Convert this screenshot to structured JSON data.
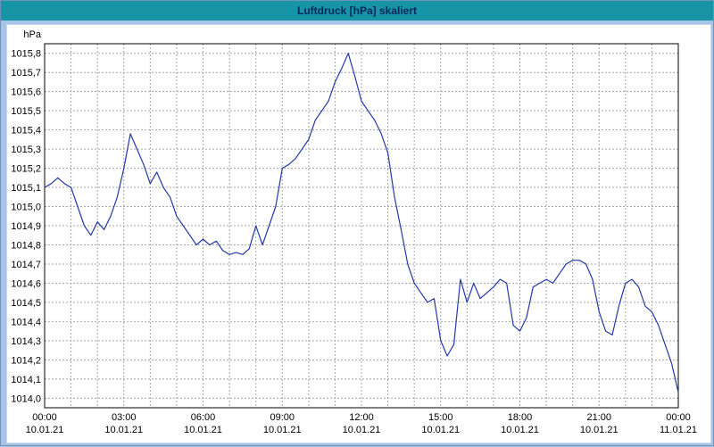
{
  "window": {
    "title": "Luftdruck [hPa] skaliert"
  },
  "colors": {
    "titlebar_bg": "#1794A6",
    "titlebar_text": "#00285A",
    "window_bg": "#A8C4E4",
    "plot_bg": "#FFFFFF",
    "plot_border": "#000000",
    "grid": "#A6A6A6",
    "line": "#2438A8",
    "axis_text": "#000000"
  },
  "chart_data": {
    "type": "line",
    "title": "Luftdruck [hPa] skaliert",
    "ylabel": "hPa",
    "x_unit": "hours_of_day",
    "xlim": [
      0,
      24
    ],
    "ylim": [
      1013.95,
      1015.85
    ],
    "grid": "dashed; vertical every hour, horizontal every 0.1 hPa",
    "legend": "none",
    "y_ticks": [
      1014.0,
      1014.1,
      1014.2,
      1014.3,
      1014.4,
      1014.5,
      1014.6,
      1014.7,
      1014.8,
      1014.9,
      1015.0,
      1015.1,
      1015.2,
      1015.3,
      1015.4,
      1015.5,
      1015.6,
      1015.7,
      1015.8
    ],
    "y_tick_labels": [
      "1014,0",
      "1014,1",
      "1014,2",
      "1014,3",
      "1014,4",
      "1014,5",
      "1014,6",
      "1014,7",
      "1014,8",
      "1014,9",
      "1015,0",
      "1015,1",
      "1015,2",
      "1015,3",
      "1015,4",
      "1015,5",
      "1015,6",
      "1015,7",
      "1015,8"
    ],
    "x_ticks": [
      0,
      3,
      6,
      9,
      12,
      15,
      18,
      21,
      24
    ],
    "x_tick_labels": [
      {
        "time": "00:00",
        "date": "10.01.21"
      },
      {
        "time": "03:00",
        "date": "10.01.21"
      },
      {
        "time": "06:00",
        "date": "10.01.21"
      },
      {
        "time": "09:00",
        "date": "10.01.21"
      },
      {
        "time": "12:00",
        "date": "10.01.21"
      },
      {
        "time": "15:00",
        "date": "10.01.21"
      },
      {
        "time": "18:00",
        "date": "10.01.21"
      },
      {
        "time": "21:00",
        "date": "10.01.21"
      },
      {
        "time": "00:00",
        "date": "11.01.21"
      }
    ],
    "x": [
      0,
      0.25,
      0.5,
      0.75,
      1,
      1.25,
      1.5,
      1.75,
      2,
      2.25,
      2.5,
      2.75,
      3,
      3.25,
      3.5,
      3.75,
      4,
      4.25,
      4.5,
      4.75,
      5,
      5.25,
      5.5,
      5.75,
      6,
      6.25,
      6.5,
      6.75,
      7,
      7.25,
      7.5,
      7.75,
      8,
      8.25,
      8.5,
      8.75,
      9,
      9.25,
      9.5,
      9.75,
      10,
      10.25,
      10.5,
      10.75,
      11,
      11.25,
      11.5,
      11.75,
      12,
      12.25,
      12.5,
      12.75,
      13,
      13.25,
      13.5,
      13.75,
      14,
      14.25,
      14.5,
      14.75,
      15,
      15.25,
      15.5,
      15.75,
      16,
      16.25,
      16.5,
      16.75,
      17,
      17.25,
      17.5,
      17.75,
      18,
      18.25,
      18.5,
      18.75,
      19,
      19.25,
      19.5,
      19.75,
      20,
      20.25,
      20.5,
      20.75,
      21,
      21.25,
      21.5,
      21.75,
      22,
      22.25,
      22.5,
      22.75,
      23,
      23.25,
      23.5,
      23.75,
      24
    ],
    "values": [
      1015.1,
      1015.12,
      1015.15,
      1015.12,
      1015.1,
      1015.0,
      1014.9,
      1014.85,
      1014.92,
      1014.88,
      1014.95,
      1015.05,
      1015.2,
      1015.38,
      1015.3,
      1015.22,
      1015.12,
      1015.18,
      1015.1,
      1015.05,
      1014.95,
      1014.9,
      1014.85,
      1014.8,
      1014.83,
      1014.8,
      1014.82,
      1014.77,
      1014.75,
      1014.76,
      1014.75,
      1014.78,
      1014.9,
      1014.8,
      1014.9,
      1015.0,
      1015.2,
      1015.22,
      1015.25,
      1015.3,
      1015.35,
      1015.45,
      1015.5,
      1015.55,
      1015.65,
      1015.72,
      1015.8,
      1015.68,
      1015.55,
      1015.5,
      1015.45,
      1015.38,
      1015.28,
      1015.05,
      1014.88,
      1014.7,
      1014.6,
      1014.55,
      1014.5,
      1014.52,
      1014.3,
      1014.22,
      1014.28,
      1014.62,
      1014.5,
      1014.6,
      1014.52,
      1014.55,
      1014.58,
      1014.62,
      1014.6,
      1014.38,
      1014.35,
      1014.42,
      1014.58,
      1014.6,
      1014.62,
      1014.6,
      1014.65,
      1014.7,
      1014.72,
      1014.72,
      1014.7,
      1014.62,
      1014.45,
      1014.35,
      1014.33,
      1014.48,
      1014.6,
      1014.62,
      1014.58,
      1014.48,
      1014.45,
      1014.38,
      1014.28,
      1014.18,
      1014.03
    ]
  }
}
